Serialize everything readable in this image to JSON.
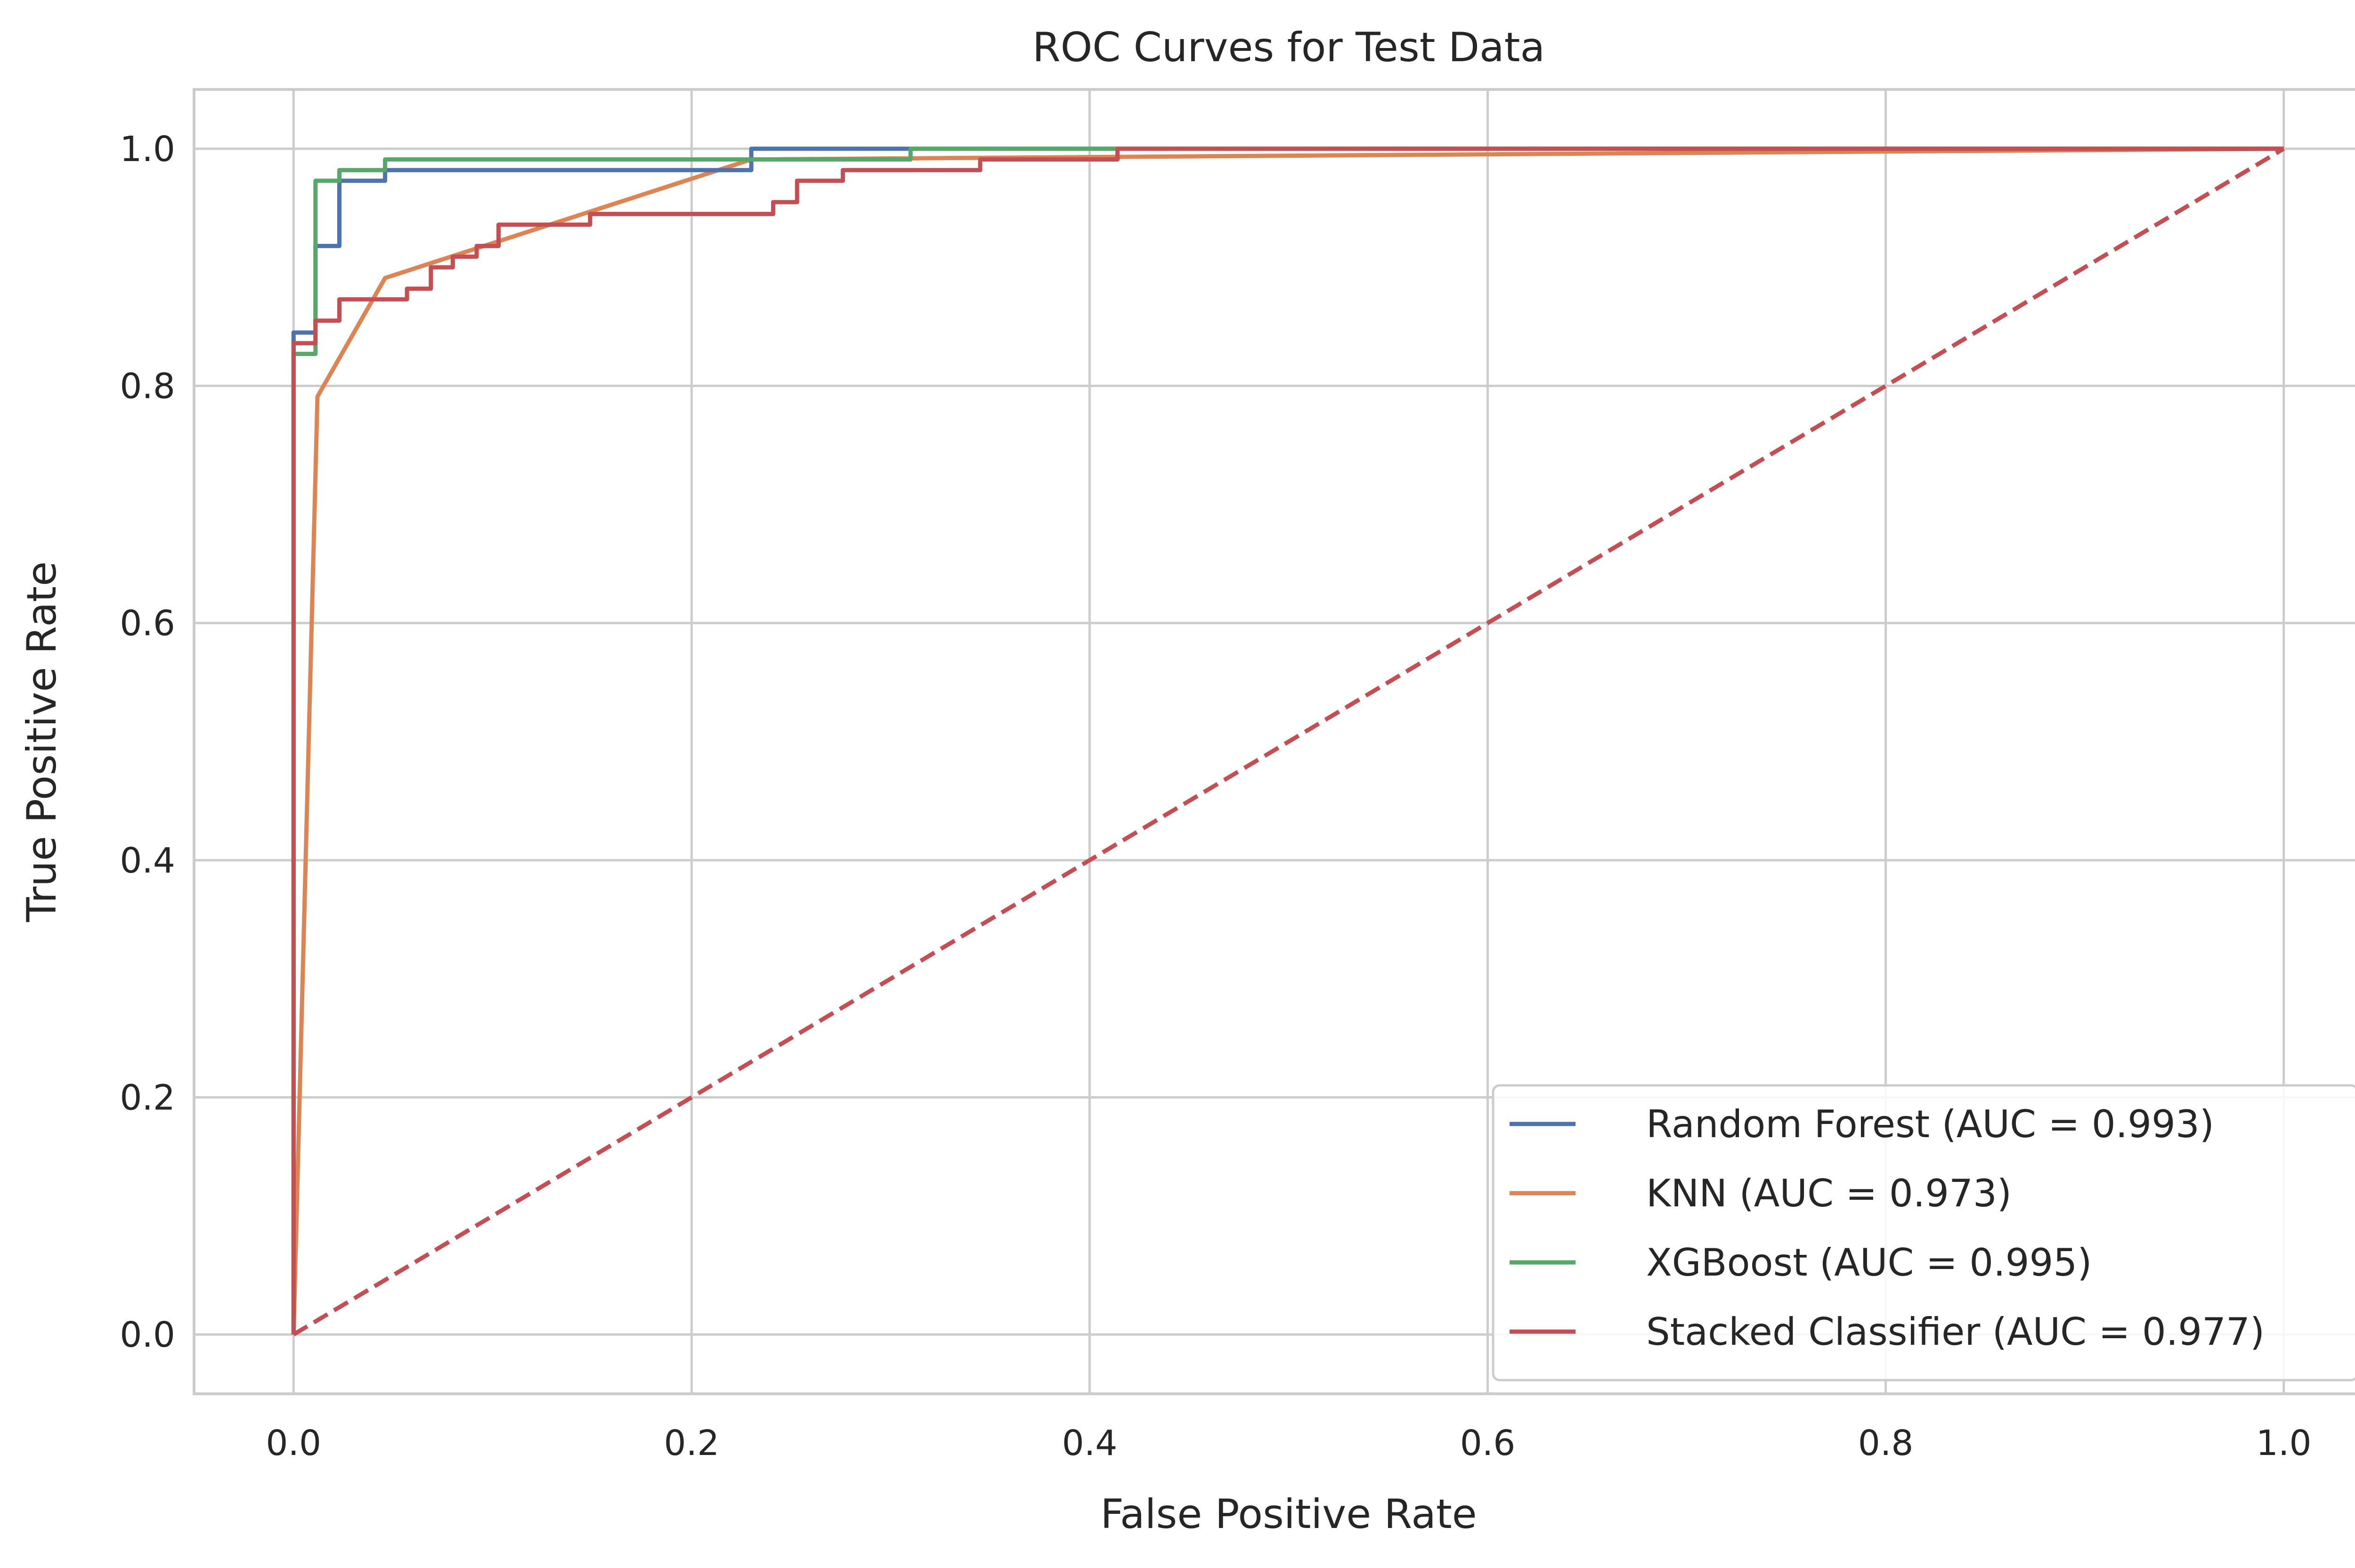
{
  "chart_data": {
    "type": "line",
    "title": "ROC Curves for Test Data",
    "xlabel": "False Positive Rate",
    "ylabel": "True Positive Rate",
    "xlim": [
      -0.05,
      1.05
    ],
    "ylim": [
      -0.05,
      1.05
    ],
    "xticks": [
      0.0,
      0.2,
      0.4,
      0.6,
      0.8,
      1.0
    ],
    "yticks": [
      0.0,
      0.2,
      0.4,
      0.6,
      0.8,
      1.0
    ],
    "xtick_labels": [
      "0.0",
      "0.2",
      "0.4",
      "0.6",
      "0.8",
      "1.0"
    ],
    "ytick_labels": [
      "0.0",
      "0.2",
      "0.4",
      "0.6",
      "0.8",
      "1.0"
    ],
    "grid": true,
    "legend_position": "lower-right",
    "series": [
      {
        "name": "Random Forest (AUC = 0.993)",
        "color": "#4c72b0",
        "style": "solid",
        "x": [
          0.0,
          0.0,
          0.011,
          0.011,
          0.023,
          0.023,
          0.046,
          0.046,
          0.23,
          0.23,
          0.31,
          1.0
        ],
        "y": [
          0.0,
          0.845,
          0.845,
          0.918,
          0.918,
          0.973,
          0.973,
          0.982,
          0.982,
          1.0,
          1.0,
          1.0
        ]
      },
      {
        "name": "KNN (AUC = 0.973)",
        "color": "#dd8452",
        "style": "solid",
        "x": [
          0.0,
          0.012,
          0.046,
          0.23,
          1.0
        ],
        "y": [
          0.0,
          0.791,
          0.891,
          0.991,
          1.0
        ]
      },
      {
        "name": "XGBoost (AUC = 0.995)",
        "color": "#55a868",
        "style": "solid",
        "x": [
          0.0,
          0.0,
          0.011,
          0.011,
          0.023,
          0.023,
          0.046,
          0.046,
          0.31,
          0.31,
          0.414,
          1.0
        ],
        "y": [
          0.0,
          0.827,
          0.827,
          0.973,
          0.973,
          0.982,
          0.982,
          0.991,
          0.991,
          1.0,
          1.0,
          1.0
        ]
      },
      {
        "name": "Stacked Classifier (AUC = 0.977)",
        "color": "#c44e52",
        "style": "solid",
        "x": [
          0.0,
          0.0,
          0.011,
          0.011,
          0.023,
          0.023,
          0.057,
          0.057,
          0.069,
          0.069,
          0.08,
          0.08,
          0.092,
          0.092,
          0.103,
          0.103,
          0.149,
          0.149,
          0.241,
          0.241,
          0.253,
          0.253,
          0.276,
          0.276,
          0.345,
          0.345,
          0.414,
          0.414,
          1.0
        ],
        "y": [
          0.0,
          0.836,
          0.836,
          0.855,
          0.855,
          0.873,
          0.873,
          0.882,
          0.882,
          0.9,
          0.9,
          0.909,
          0.909,
          0.918,
          0.918,
          0.936,
          0.936,
          0.945,
          0.945,
          0.955,
          0.955,
          0.973,
          0.973,
          0.982,
          0.982,
          0.991,
          0.991,
          1.0,
          1.0
        ]
      },
      {
        "name": "",
        "color": "#c44e52",
        "style": "dashed",
        "x": [
          0.0,
          1.0
        ],
        "y": [
          0.0,
          1.0
        ]
      }
    ]
  }
}
